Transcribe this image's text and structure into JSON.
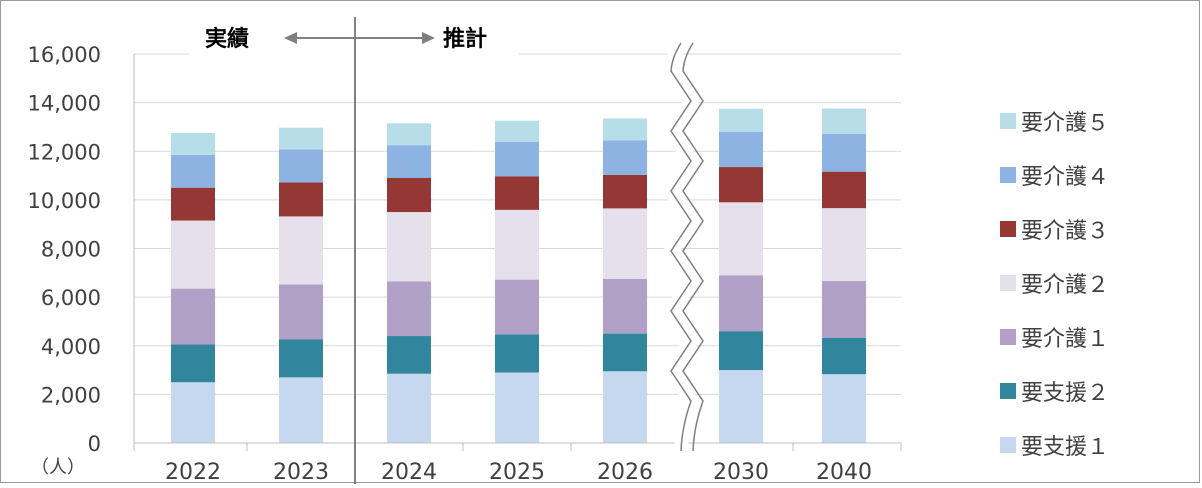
{
  "chart_data": {
    "type": "bar",
    "stacked": true,
    "categories": [
      "2022",
      "2023",
      "2024",
      "2025",
      "2026",
      "2030",
      "2040"
    ],
    "ylim": [
      0,
      16000
    ],
    "yticks": [
      "0",
      "2,000",
      "4,000",
      "6,000",
      "8,000",
      "10,000",
      "12,000",
      "14,000",
      "16,000"
    ],
    "ylabel": "（人）",
    "grid": true,
    "legend_position": "right",
    "annotations": {
      "actual": "実績",
      "estimate": "推計"
    },
    "series": [
      {
        "name": "要支援１",
        "color": "#c5d8f0",
        "values": [
          2500,
          2700,
          2850,
          2900,
          2950,
          3000,
          2830
        ]
      },
      {
        "name": "要支援２",
        "color": "#31859c",
        "values": [
          1550,
          1570,
          1550,
          1570,
          1550,
          1600,
          1500
        ]
      },
      {
        "name": "要介護１",
        "color": "#b1a0c7",
        "values": [
          2300,
          2250,
          2250,
          2250,
          2250,
          2300,
          2330
        ]
      },
      {
        "name": "要介護２",
        "color": "#e6e0ec",
        "values": [
          2800,
          2800,
          2850,
          2870,
          2900,
          3000,
          3000
        ]
      },
      {
        "name": "要介護３",
        "color": "#953735",
        "values": [
          1350,
          1400,
          1400,
          1380,
          1380,
          1450,
          1500
        ]
      },
      {
        "name": "要介護４",
        "color": "#8db3e2",
        "values": [
          1350,
          1350,
          1350,
          1420,
          1420,
          1450,
          1550
        ]
      },
      {
        "name": "要介護５",
        "color": "#b7dee8",
        "values": [
          900,
          900,
          900,
          870,
          900,
          950,
          1050
        ]
      }
    ]
  }
}
